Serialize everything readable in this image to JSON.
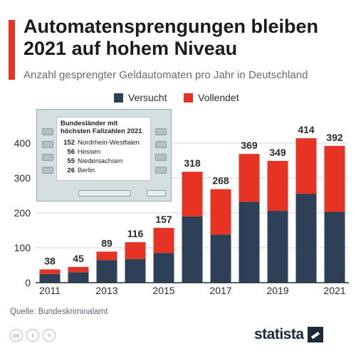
{
  "header": {
    "title": "Automatensprengungen bleiben 2021 auf hohem Niveau",
    "subtitle": "Anzahl gesprengter Geldautomaten pro Jahr in Deutschland"
  },
  "colors": {
    "accent": "#e63323",
    "versucht": "#2e4057",
    "vollendet": "#e63323"
  },
  "chart_data": {
    "type": "bar",
    "stacked": true,
    "categories": [
      "2011",
      "2012",
      "2013",
      "2014",
      "2015",
      "2016",
      "2017",
      "2018",
      "2019",
      "2020",
      "2021"
    ],
    "x_tick_labels": [
      "2011",
      "2013",
      "2015",
      "2017",
      "2019",
      "2021"
    ],
    "series": [
      {
        "name": "Versucht",
        "color": "#2e4057",
        "values": [
          25,
          30,
          65,
          68,
          85,
          190,
          138,
          232,
          206,
          255,
          203
        ]
      },
      {
        "name": "Vollendet",
        "color": "#e63323",
        "values": [
          13,
          15,
          24,
          48,
          72,
          128,
          130,
          137,
          143,
          159,
          189
        ]
      }
    ],
    "totals": [
      38,
      45,
      89,
      116,
      157,
      318,
      268,
      369,
      349,
      414,
      392
    ],
    "yticks": [
      0,
      100,
      200,
      300,
      400
    ],
    "ylim": [
      0,
      420
    ],
    "grid": true,
    "legend": "top-center"
  },
  "inset": {
    "title": "Bundesländer mit höchsten Fallzahlen 2021",
    "rows": [
      {
        "value": "152",
        "label": "Nordrhein-Westfalen"
      },
      {
        "value": "56",
        "label": "Hessen"
      },
      {
        "value": "55",
        "label": "Niedersachsen"
      },
      {
        "value": "26",
        "label": "Berlin"
      }
    ]
  },
  "footer": {
    "source": "Quelle: Bundeskriminalamt",
    "license_icons": [
      "cc-icon",
      "attribution-icon",
      "no-derivatives-icon"
    ],
    "logo_text": "statista"
  }
}
